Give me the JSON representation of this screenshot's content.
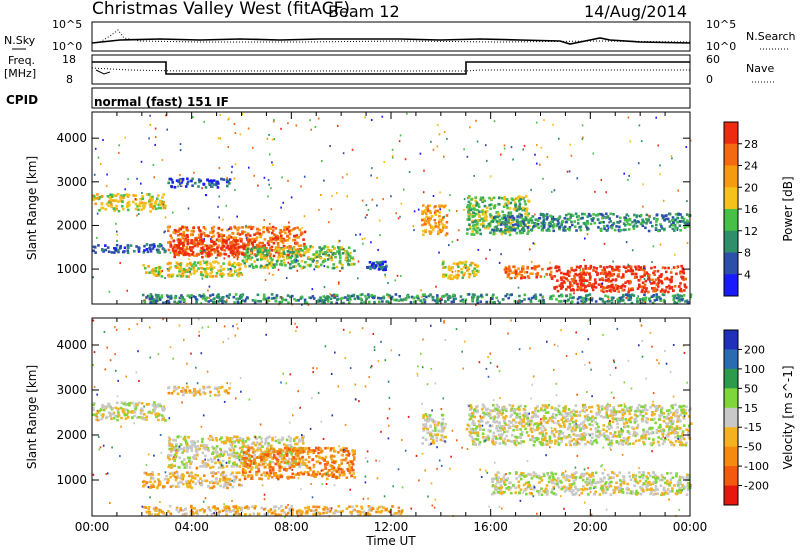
{
  "header": {
    "site": "Christmas Valley West (fitACF)",
    "beam": "Beam 12",
    "date": "14/Aug/2014"
  },
  "noise_panel": {
    "left_label": "N.Sky",
    "left_top_tick": "10^5",
    "left_bottom_tick": "10^0",
    "right_top_tick": "10^5",
    "right_bottom_tick": "10^0",
    "right_label": "N.Search"
  },
  "freq_panel": {
    "left_label_line1": "Freq.",
    "left_label_line2": "[MHz]",
    "left_top_tick": "18",
    "left_bottom_tick": "8",
    "right_top_tick": "60",
    "right_bottom_tick": "0",
    "right_label": "Nave"
  },
  "cpid_panel": {
    "label": "CPID",
    "mode": "normal (fast) 151 IF"
  },
  "colors": {
    "power_scale": [
      "#1a1aff",
      "#2c50a8",
      "#2f8f6a",
      "#48c048",
      "#f4c21a",
      "#f59b10",
      "#f36a12",
      "#ee2a10"
    ],
    "velocity_scale": [
      "#e81810",
      "#f35a10",
      "#f48a10",
      "#f3b21e",
      "#c8c8c8",
      "#7ed63a",
      "#2e9a4c",
      "#2b6cb0",
      "#2030b8"
    ]
  },
  "chart_data": [
    {
      "type": "heatmap",
      "title": "Power",
      "ylabel": "Slant Range [km]",
      "ylim": [
        200,
        4600
      ],
      "y_ticks": [
        "1000",
        "2000",
        "3000",
        "4000"
      ],
      "colorbar_label": "Power [dB]",
      "colorbar_ticks": [
        "4",
        "8",
        "12",
        "16",
        "20",
        "24",
        "28"
      ],
      "regions": [
        {
          "t0": 0.0,
          "t1": 2.9,
          "r0": 2350,
          "r1": 2750,
          "level": 4
        },
        {
          "t0": 0.0,
          "t1": 2.9,
          "r0": 1400,
          "r1": 1600,
          "level": 1
        },
        {
          "t0": 3.0,
          "t1": 8.5,
          "r0": 1300,
          "r1": 2000,
          "level": 6
        },
        {
          "t0": 3.2,
          "t1": 6.5,
          "r0": 1350,
          "r1": 1700,
          "level": 7
        },
        {
          "t0": 2.0,
          "t1": 6.0,
          "r0": 850,
          "r1": 1200,
          "level": 4
        },
        {
          "t0": 6.0,
          "t1": 10.5,
          "r0": 1050,
          "r1": 1550,
          "level": 3
        },
        {
          "t0": 3.0,
          "t1": 5.5,
          "r0": 2900,
          "r1": 3100,
          "level": 1
        },
        {
          "t0": 11.0,
          "t1": 11.8,
          "r0": 1000,
          "r1": 1200,
          "level": 1
        },
        {
          "t0": 13.2,
          "t1": 14.2,
          "r0": 1800,
          "r1": 2500,
          "level": 5
        },
        {
          "t0": 14.0,
          "t1": 15.5,
          "r0": 800,
          "r1": 1200,
          "level": 4
        },
        {
          "t0": 15.0,
          "t1": 17.5,
          "r0": 1800,
          "r1": 2700,
          "level": 3
        },
        {
          "t0": 16.0,
          "t1": 24.0,
          "r0": 1900,
          "r1": 2300,
          "level": 2
        },
        {
          "t0": 16.5,
          "t1": 18.5,
          "r0": 800,
          "r1": 1100,
          "level": 6
        },
        {
          "t0": 18.5,
          "t1": 23.8,
          "r0": 500,
          "r1": 1100,
          "level": 7
        },
        {
          "t0": 2.0,
          "t1": 24.0,
          "r0": 250,
          "r1": 450,
          "level": 2
        }
      ]
    },
    {
      "type": "heatmap",
      "title": "Velocity",
      "xlabel": "Time UT",
      "ylabel": "Slant Range [km]",
      "ylim": [
        200,
        4600
      ],
      "y_ticks": [
        "1000",
        "2000",
        "3000",
        "4000"
      ],
      "x_ticks": [
        "00:00",
        "04:00",
        "08:00",
        "12:00",
        "16:00",
        "20:00",
        "00:00"
      ],
      "colorbar_label": "Velocity [m s^-1]",
      "colorbar_ticks": [
        "200",
        "100",
        "50",
        "15",
        "-15",
        "-50",
        "-100",
        "-200"
      ],
      "regions": [
        {
          "t0": 0.0,
          "t1": 2.9,
          "r0": 2350,
          "r1": 2750,
          "level": 4
        },
        {
          "t0": 3.0,
          "t1": 8.5,
          "r0": 1300,
          "r1": 2000,
          "level": 4
        },
        {
          "t0": 2.0,
          "t1": 6.0,
          "r0": 850,
          "r1": 1200,
          "level": 3
        },
        {
          "t0": 6.0,
          "t1": 10.5,
          "r0": 1050,
          "r1": 1750,
          "level": 2
        },
        {
          "t0": 3.0,
          "t1": 5.5,
          "r0": 2900,
          "r1": 3100,
          "level": 3
        },
        {
          "t0": 13.2,
          "t1": 14.2,
          "r0": 1800,
          "r1": 2500,
          "level": 4
        },
        {
          "t0": 15.0,
          "t1": 24.0,
          "r0": 1800,
          "r1": 2700,
          "level": 4
        },
        {
          "t0": 16.0,
          "t1": 24.0,
          "r0": 700,
          "r1": 1200,
          "level": 4
        },
        {
          "t0": 2.0,
          "t1": 12.5,
          "r0": 250,
          "r1": 450,
          "level": 3
        }
      ]
    }
  ]
}
